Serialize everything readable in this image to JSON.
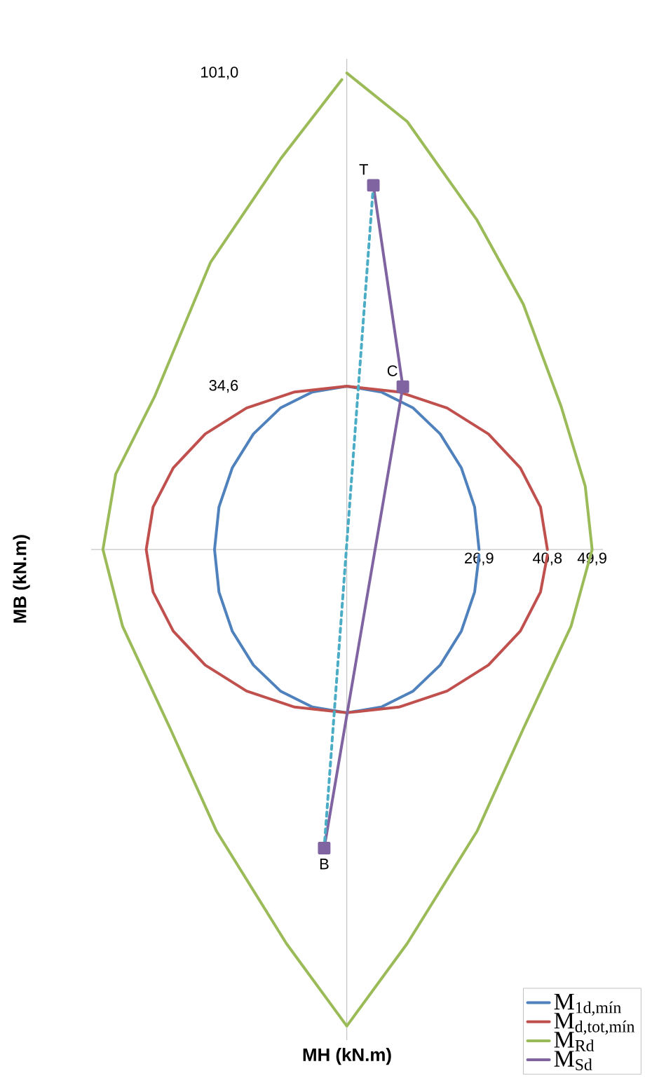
{
  "chart_data": {
    "type": "line",
    "xlabel": "MH (kN.m)",
    "ylabel": "MB (kN.m)",
    "xlim": [
      -52,
      52.1
    ],
    "ylim": [
      -104,
      104
    ],
    "xticks": [
      {
        "value": 26.9,
        "label": "26,9"
      },
      {
        "value": 40.8,
        "label": "40,8"
      },
      {
        "value": 49.9,
        "label": "49,9"
      }
    ],
    "yticks": [
      {
        "value": 34.6,
        "label": "34,6"
      },
      {
        "value": 101.0,
        "label": "101,0"
      }
    ],
    "legend": "bottom right",
    "marker": "none",
    "line_style": "solid",
    "grid": false,
    "annotations": [
      {
        "text": "T",
        "x": 5.4,
        "y": 77.2
      },
      {
        "text": "C",
        "x": 11.4,
        "y": 34.5
      },
      {
        "text": "B",
        "x": -4.6,
        "y": -63.3
      }
    ],
    "series": [
      {
        "name": "M$_{1d,mín}$",
        "color": "#4f81bd",
        "x": [
          26.9,
          26.0,
          23.3,
          19.0,
          13.5,
          7.0,
          0,
          -7.0,
          -13.5,
          -19.0,
          -23.3,
          -26.0,
          -26.9,
          -26.0,
          -23.3,
          -19.0,
          -13.5,
          -7.0,
          0,
          7.0,
          13.5,
          19.0,
          23.3,
          26.0,
          26.9
        ],
        "values": [
          0,
          9.0,
          17.3,
          24.5,
          30.0,
          33.4,
          34.6,
          33.4,
          30.0,
          24.5,
          17.3,
          9.0,
          0,
          -9.0,
          -17.3,
          -24.5,
          -30.0,
          -33.4,
          -34.6,
          -33.4,
          -30.0,
          -24.5,
          -17.3,
          -9.0,
          -1.2
        ]
      },
      {
        "name": "M$_{d,tot,mín}$",
        "color": "#c0504d",
        "x": [
          40.8,
          39.4,
          35.3,
          28.8,
          20.4,
          10.6,
          0,
          -10.6,
          -20.4,
          -28.8,
          -35.3,
          -39.4,
          -40.8,
          -39.4,
          -35.3,
          -28.8,
          -20.4,
          -10.6,
          0,
          10.6,
          20.4,
          28.8,
          35.3,
          39.4,
          40.8
        ],
        "values": [
          0,
          9.0,
          17.3,
          24.5,
          30.0,
          33.4,
          34.6,
          33.4,
          30.0,
          24.5,
          17.3,
          9.0,
          0,
          -9.0,
          -17.3,
          -24.5,
          -30.0,
          -33.4,
          -34.6,
          -33.4,
          -30.0,
          -24.5,
          -17.3,
          -9.0,
          -1.2
        ]
      },
      {
        "name": "M$_{Rd}$",
        "color": "#9bbb59",
        "x": [
          0,
          12.3,
          26.5,
          35.9,
          43.6,
          48.5,
          49.9,
          45.6,
          35.9,
          26.5,
          12.3,
          0,
          -12.3,
          -26.5,
          -35.9,
          -45.6,
          -49.6,
          -47.0,
          -39.1,
          -27.7,
          -13.4,
          -1.0
        ],
        "values": [
          101.0,
          90.7,
          69.8,
          52.0,
          30.3,
          13.4,
          0,
          -16.3,
          -38.0,
          -59.7,
          -83.5,
          -101.0,
          -83.5,
          -59.7,
          -38.0,
          -16.3,
          0,
          16.0,
          32.4,
          60.9,
          82.9,
          99.6
        ]
      },
      {
        "name": "M$_{Sd}$",
        "color": "#8064a2",
        "marker": "square",
        "x": [
          5.4,
          11.4,
          -4.6
        ],
        "values": [
          77.2,
          34.5,
          -63.3
        ]
      },
      {
        "color": "#4bacc6",
        "line_style": "dashed",
        "x": [
          5.4,
          -4.6
        ],
        "values": [
          77.2,
          -63.3
        ]
      }
    ]
  }
}
